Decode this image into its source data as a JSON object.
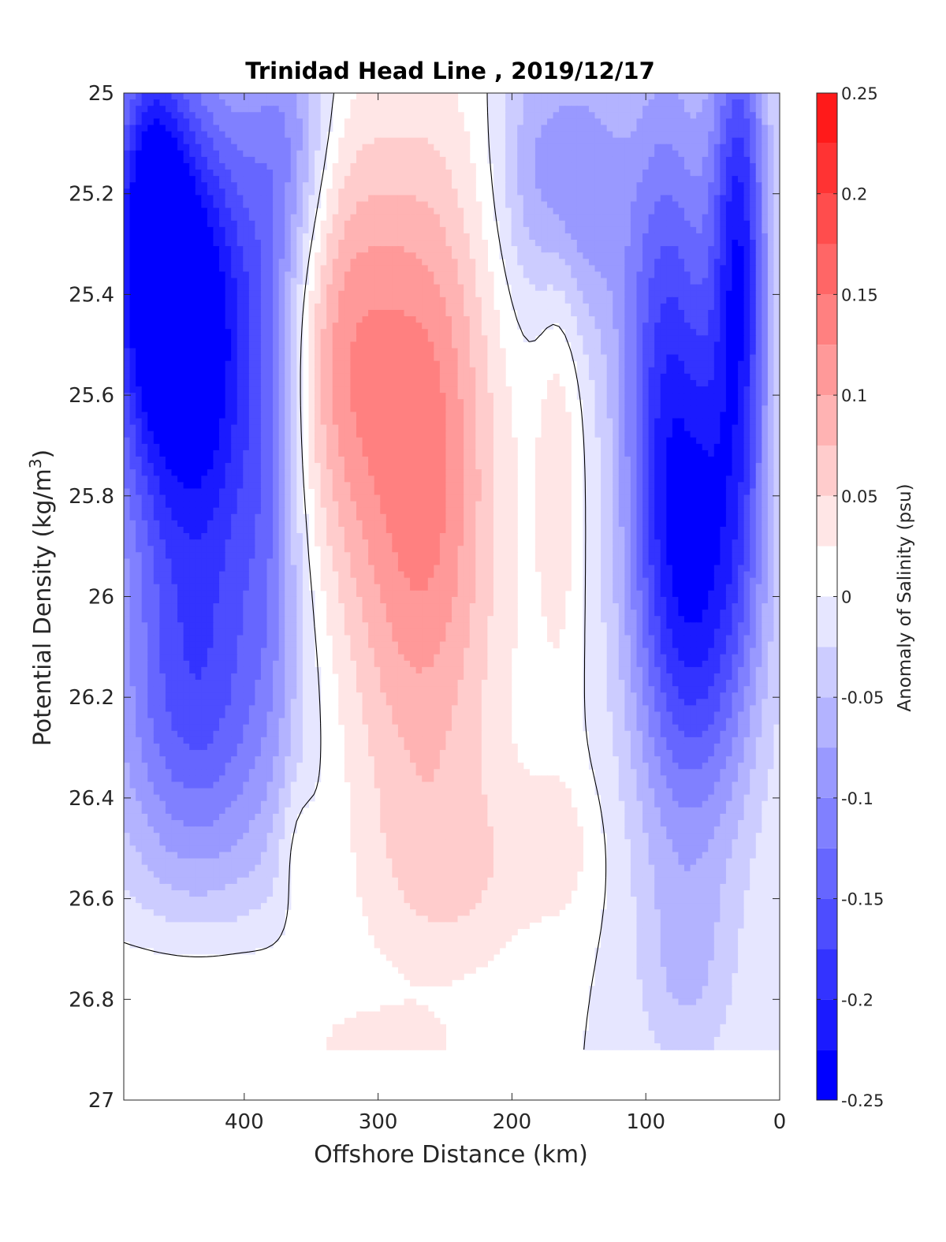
{
  "chart_data": {
    "type": "heatmap",
    "subtype": "filled-contour",
    "title": "Trinidad Head Line , 2019/12/17",
    "xlabel": "Offshore Distance (km)",
    "ylabel_prefix": "Potential Density (kg/m",
    "ylabel_sup": "3",
    "ylabel_suffix": ")",
    "colorbar_label": "Anomaly of Salinity (psu)",
    "x_axis": {
      "min": 0,
      "max": 490,
      "reversed": true,
      "ticks": [
        400,
        300,
        200,
        100,
        0
      ]
    },
    "y_axis": {
      "min": 25,
      "max": 27,
      "reversed": true,
      "ticks": [
        25,
        25.2,
        25.4,
        25.6,
        25.8,
        26,
        26.2,
        26.4,
        26.6,
        26.8,
        27
      ],
      "tick_labels": [
        "25",
        "25.2",
        "25.4",
        "25.6",
        "25.8",
        "26",
        "26.2",
        "26.4",
        "26.6",
        "26.8",
        "27"
      ]
    },
    "colorbar": {
      "min": -0.25,
      "max": 0.25,
      "levels": [
        -0.25,
        -0.225,
        -0.2,
        -0.175,
        -0.15,
        -0.125,
        -0.1,
        -0.075,
        -0.05,
        -0.025,
        0,
        0.025,
        0.05,
        0.075,
        0.1,
        0.125,
        0.15,
        0.175,
        0.2,
        0.225,
        0.25
      ],
      "tick_values": [
        -0.25,
        -0.2,
        -0.15,
        -0.1,
        -0.05,
        0,
        0.05,
        0.1,
        0.15,
        0.2,
        0.25
      ],
      "tick_labels": [
        "-0.25",
        "-0.2",
        "-0.15",
        "-0.1",
        "-0.05",
        "0",
        "0.05",
        "0.1",
        "0.15",
        "0.2",
        "0.25"
      ],
      "colors": [
        "#0000ff",
        "#1a1aff",
        "#3333ff",
        "#4d4dff",
        "#6666ff",
        "#8080ff",
        "#9999ff",
        "#b3b3ff",
        "#ccccff",
        "#e6e6ff",
        "#ffffff",
        "#ffe6e6",
        "#ffcccc",
        "#ffb3b3",
        "#ff9999",
        "#ff8080",
        "#ff6666",
        "#ff4d4d",
        "#ff3333",
        "#ff1a1a"
      ]
    },
    "data_extent": {
      "sigma_max": 26.9
    },
    "grid": false,
    "contour_line": {
      "level": 0,
      "color": "#000000"
    },
    "field": {
      "background": 0,
      "features": [
        {
          "x": 470,
          "y": 25.18,
          "sx": 18,
          "sy": 0.25,
          "amp": -0.12
        },
        {
          "x": 450,
          "y": 25.4,
          "sx": 40,
          "sy": 0.3,
          "amp": -0.2
        },
        {
          "x": 430,
          "y": 25.85,
          "sx": 45,
          "sy": 0.5,
          "amp": -0.14
        },
        {
          "x": 445,
          "y": 26.25,
          "sx": 45,
          "sy": 0.2,
          "amp": -0.06
        },
        {
          "x": 365,
          "y": 25.1,
          "sx": 22,
          "sy": 0.22,
          "amp": -0.08
        },
        {
          "x": 380,
          "y": 25.75,
          "sx": 15,
          "sy": 0.4,
          "amp": -0.05
        },
        {
          "x": 330,
          "y": 25.5,
          "sx": 30,
          "sy": 0.3,
          "amp": 0.1
        },
        {
          "x": 265,
          "y": 25.6,
          "sx": 35,
          "sy": 0.38,
          "amp": 0.11
        },
        {
          "x": 270,
          "y": 26.1,
          "sx": 45,
          "sy": 0.35,
          "amp": 0.06
        },
        {
          "x": 240,
          "y": 26.55,
          "sx": 45,
          "sy": 0.15,
          "amp": 0.04
        },
        {
          "x": 165,
          "y": 25.7,
          "sx": 12,
          "sy": 0.35,
          "amp": 0.04
        },
        {
          "x": 175,
          "y": 25.15,
          "sx": 25,
          "sy": 0.2,
          "amp": -0.08
        },
        {
          "x": 140,
          "y": 25.2,
          "sx": 20,
          "sy": 0.2,
          "amp": -0.06
        },
        {
          "x": 85,
          "y": 25.55,
          "sx": 25,
          "sy": 0.45,
          "amp": -0.16
        },
        {
          "x": 65,
          "y": 26.05,
          "sx": 30,
          "sy": 0.35,
          "amp": -0.12
        },
        {
          "x": 30,
          "y": 25.3,
          "sx": 15,
          "sy": 0.35,
          "amp": -0.2
        },
        {
          "x": 40,
          "y": 25.9,
          "sx": 25,
          "sy": 0.3,
          "amp": -0.08
        },
        {
          "x": 70,
          "y": 26.75,
          "sx": 25,
          "sy": 0.15,
          "amp": -0.04
        },
        {
          "x": 430,
          "y": 26.8,
          "sx": 60,
          "sy": 0.12,
          "amp": 0.045
        },
        {
          "x": 360,
          "y": 26.5,
          "sx": 10,
          "sy": 0.1,
          "amp": 0.03
        },
        {
          "x": 290,
          "y": 26.9,
          "sx": 40,
          "sy": 0.06,
          "amp": 0.03
        },
        {
          "x": 165,
          "y": 26.5,
          "sx": 20,
          "sy": 0.1,
          "amp": 0.03
        }
      ]
    }
  }
}
